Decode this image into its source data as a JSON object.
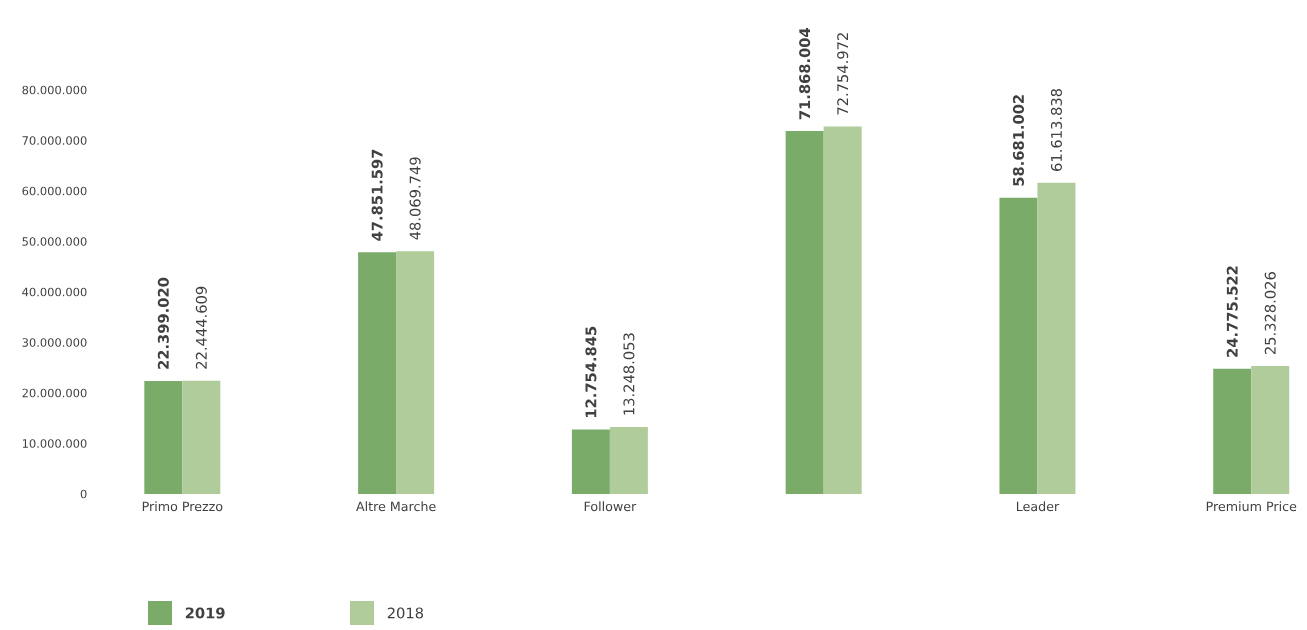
{
  "chart_data": {
    "type": "bar",
    "categories": [
      "Primo Prezzo",
      "Altre Marche",
      "Follower",
      null,
      "Leader",
      "Premium Price"
    ],
    "series": [
      {
        "name": "2019",
        "color": "#7aab69",
        "values": [
          22399020,
          47851597,
          12754845,
          71868004,
          58681002,
          24775522
        ],
        "value_labels": [
          "22.399.020",
          "47.851.597",
          "12.754.845",
          "71.868.004",
          "58.681.002",
          "24.775.522"
        ]
      },
      {
        "name": "2018",
        "color": "#afcc9a",
        "values": [
          22444609,
          48069749,
          13248053,
          72754972,
          61613838,
          25328026
        ],
        "value_labels": [
          "22.444.609",
          "48.069.749",
          "13.248.053",
          "72.754.972",
          "61.613.838",
          "25.328.026"
        ]
      }
    ],
    "ylim": [
      0,
      80000000
    ],
    "yticks": [
      {
        "value": 0,
        "label": "0"
      },
      {
        "value": 10000000,
        "label": "10.000.000"
      },
      {
        "value": 20000000,
        "label": "20.000.000"
      },
      {
        "value": 30000000,
        "label": "30.000.000"
      },
      {
        "value": 40000000,
        "label": "40.000.000"
      },
      {
        "value": 50000000,
        "label": "50.000.000"
      },
      {
        "value": 60000000,
        "label": "60.000.000"
      },
      {
        "value": 70000000,
        "label": "70.000.000"
      },
      {
        "value": 80000000,
        "label": "80.000.000"
      }
    ],
    "grid": false,
    "legend": "bottom left"
  }
}
